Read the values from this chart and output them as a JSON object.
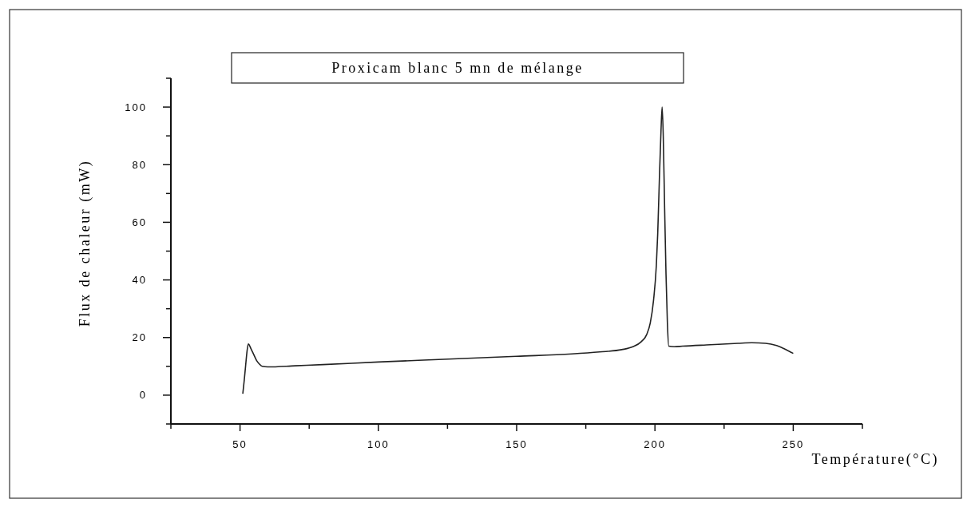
{
  "chart_data": {
    "type": "line",
    "title": "Proxicam blanc 5 mn de mélange",
    "xlabel": "Température(°C)",
    "ylabel": "Flux de chaleur (mW)",
    "xlim": [
      25,
      275
    ],
    "xticks": [
      {
        "value": 25,
        "label": null
      },
      50,
      {
        "value": 75,
        "label": null
      },
      100,
      {
        "value": 125,
        "label": null
      },
      150,
      {
        "value": 175,
        "label": null
      },
      200,
      {
        "value": 225,
        "label": null
      },
      250,
      {
        "value": 275,
        "label": null
      }
    ],
    "ylim": [
      -10,
      110
    ],
    "yticks": [
      {
        "value": -10,
        "label": null
      },
      0,
      {
        "value": 10,
        "label": null
      },
      20,
      {
        "value": 30,
        "label": null
      },
      40,
      {
        "value": 50,
        "label": null
      },
      60,
      {
        "value": 70,
        "label": null
      },
      80,
      {
        "value": 90,
        "label": null
      },
      100,
      {
        "value": 110,
        "label": null
      }
    ],
    "grid": false,
    "series": [
      {
        "color": "#222222",
        "x": [
          51,
          51.5,
          52,
          52.5,
          53,
          54,
          55,
          56,
          57,
          58,
          60,
          70,
          80,
          100,
          120,
          150,
          170,
          180,
          188,
          192,
          195,
          197,
          198.3,
          199.5,
          200.5,
          201,
          201.6,
          202.2,
          202.6,
          203,
          203.5,
          204,
          204.5,
          205,
          207,
          210,
          220,
          230,
          235,
          240,
          244,
          247,
          250
        ],
        "values": [
          0.5,
          5,
          10,
          15,
          17.8,
          16,
          14,
          12,
          10.8,
          10,
          9.8,
          10.2,
          10.6,
          11.5,
          12.3,
          13.5,
          14.3,
          15,
          15.8,
          16.8,
          18.5,
          21,
          25,
          33,
          45,
          56,
          75,
          92,
          100,
          90,
          65,
          42,
          25,
          17,
          16.8,
          17,
          17.5,
          18,
          18.2,
          18,
          17.2,
          16,
          14.5
        ]
      }
    ]
  }
}
